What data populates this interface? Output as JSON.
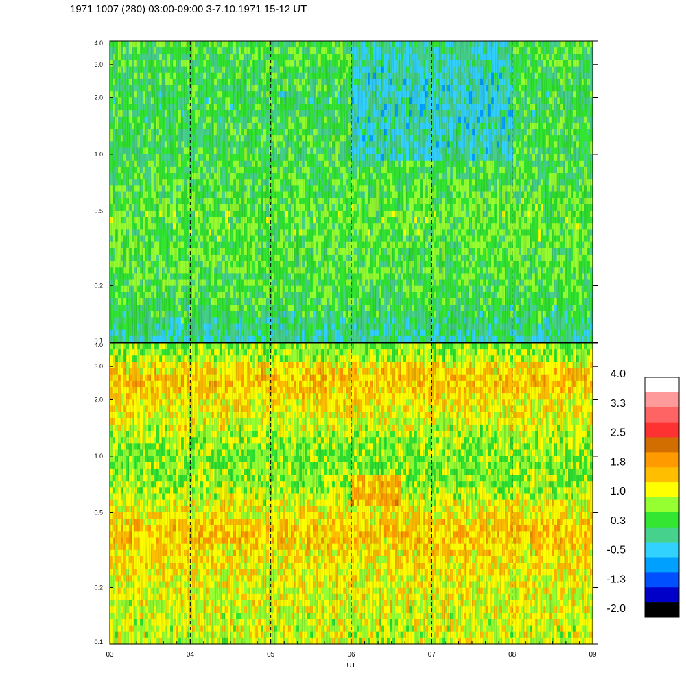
{
  "title": "1971 1007 (280) 03:00-09:00 3-7.10.1971  15-12 UT",
  "chart_data": {
    "type": "heatmap",
    "xlabel": "UT",
    "x_ticks": [
      "03",
      "04",
      "05",
      "06",
      "07",
      "08",
      "09"
    ],
    "xlim": [
      3,
      9
    ],
    "y_scale": "log",
    "ylim": [
      0.1,
      4.0
    ],
    "y_ticks": [
      "0.1",
      "0.2",
      "0.5",
      "1.0",
      "2.0",
      "3.0",
      "4.0"
    ],
    "dashed_hours": [
      4,
      5,
      6,
      7,
      8
    ],
    "panels": [
      {
        "name": "upper",
        "description_levels": "predominantly -0.5 to 1.0; lower values (blue) near top between 06 and 08",
        "base_profile": [
          {
            "y": 0.1,
            "v": 0.0
          },
          {
            "y": 0.2,
            "v": 0.5
          },
          {
            "y": 0.5,
            "v": 0.6
          },
          {
            "y": 1.0,
            "v": 0.35
          },
          {
            "y": 2.0,
            "v": 0.3
          },
          {
            "y": 4.0,
            "v": 0.45
          }
        ]
      },
      {
        "name": "lower",
        "description_levels": "predominantly 1.0 to 2.0; orange band around 0.3-0.5 and near 2.0-3.0",
        "base_profile": [
          {
            "y": 0.1,
            "v": 1.0
          },
          {
            "y": 0.2,
            "v": 1.1
          },
          {
            "y": 0.4,
            "v": 1.5
          },
          {
            "y": 0.7,
            "v": 0.8
          },
          {
            "y": 1.0,
            "v": 0.7
          },
          {
            "y": 2.5,
            "v": 1.5
          },
          {
            "y": 4.0,
            "v": 1.0
          }
        ]
      }
    ],
    "colorbar": {
      "labels": [
        "4.0",
        "3.3",
        "2.5",
        "1.8",
        "1.0",
        "0.3",
        "-0.5",
        "-1.3",
        "-2.0"
      ],
      "colors_top_to_bottom": [
        "#ffffff",
        "#ff9a9a",
        "#ff6464",
        "#ff3232",
        "#d26e00",
        "#ff9a00",
        "#ffbe00",
        "#ffff00",
        "#96ff32",
        "#32e632",
        "#46d28c",
        "#32d2ff",
        "#00a0ff",
        "#0050ff",
        "#0000c8",
        "#000000"
      ],
      "min": -2.0,
      "max": 4.0
    }
  }
}
